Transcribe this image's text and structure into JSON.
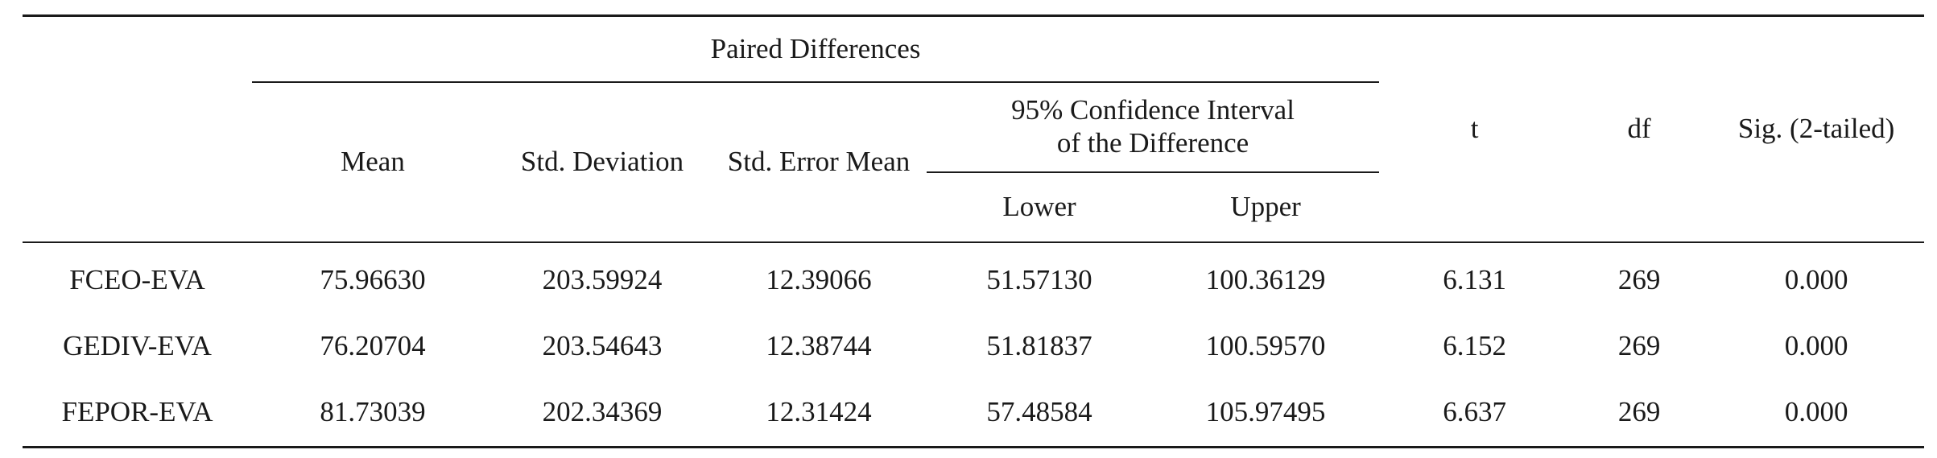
{
  "table": {
    "header": {
      "paired_differences": "Paired Differences",
      "mean": "Mean",
      "std_deviation": "Std. Deviation",
      "std_error_mean": "Std. Error Mean",
      "ci_line1": "95% Confidence Interval",
      "ci_line2": "of the Difference",
      "lower": "Lower",
      "upper": "Upper",
      "t": "t",
      "df": "df",
      "sig": "Sig. (2-tailed)"
    },
    "rows": [
      {
        "label": "FCEO-EVA",
        "mean": "75.96630",
        "std_deviation": "203.59924",
        "std_error_mean": "12.39066",
        "lower": "51.57130",
        "upper": "100.36129",
        "t": "6.131",
        "df": "269",
        "sig": "0.000"
      },
      {
        "label": "GEDIV-EVA",
        "mean": "76.20704",
        "std_deviation": "203.54643",
        "std_error_mean": "12.38744",
        "lower": "51.81837",
        "upper": "100.59570",
        "t": "6.152",
        "df": "269",
        "sig": "0.000"
      },
      {
        "label": "FEPOR-EVA",
        "mean": "81.73039",
        "std_deviation": "202.34369",
        "std_error_mean": "12.31424",
        "lower": "57.48584",
        "upper": "105.97495",
        "t": "6.637",
        "df": "269",
        "sig": "0.000"
      }
    ]
  }
}
